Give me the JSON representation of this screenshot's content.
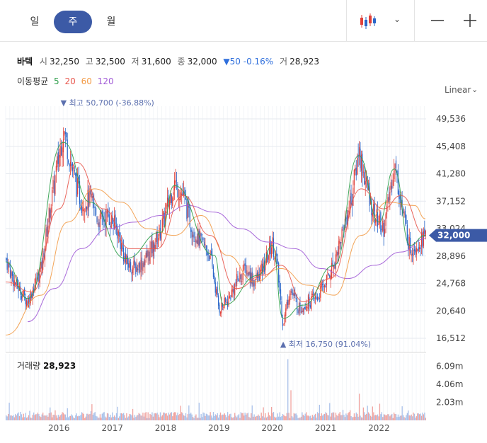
{
  "period_tabs": [
    {
      "label": "일",
      "active": false
    },
    {
      "label": "주",
      "active": true
    },
    {
      "label": "월",
      "active": false
    }
  ],
  "toolbar": {
    "chart_type_icon": "candlestick-icon",
    "dropdown_icon": "chevron-down-icon",
    "zoom_out_icon": "minus-icon",
    "zoom_in_icon": "plus-icon"
  },
  "quote": {
    "name": "바텍",
    "open_label": "시",
    "open": "32,250",
    "high_label": "고",
    "high": "32,500",
    "low_label": "저",
    "low": "31,600",
    "close_label": "종",
    "close": "32,000",
    "change": "▼50 -0.16%",
    "volume_label": "거",
    "volume": "28,923"
  },
  "ma_legend": {
    "label": "이동평균",
    "items": [
      {
        "period": "5",
        "color": "#2e9e4a"
      },
      {
        "period": "20",
        "color": "#e8564c"
      },
      {
        "period": "60",
        "color": "#f29a45"
      },
      {
        "period": "120",
        "color": "#a05ad6"
      }
    ]
  },
  "scale_mode": "Linear",
  "volume_panel": {
    "label": "거래량",
    "value": "28,923"
  },
  "colors": {
    "up": "#e0403a",
    "down": "#2a66c9",
    "accent": "#3c5aa6",
    "ma5": "#2e9e4a",
    "ma20": "#e8564c",
    "ma60": "#f29a45",
    "ma120": "#a05ad6"
  },
  "chart_data": {
    "type": "candlestick",
    "interval": "weekly",
    "x_ticks": [
      "2016",
      "2017",
      "2018",
      "2019",
      "2020",
      "2021",
      "2022"
    ],
    "y_ticks": [
      "49,536",
      "45,408",
      "41,280",
      "37,152",
      "33,024",
      "28,896",
      "24,768",
      "20,640",
      "16,512"
    ],
    "ylim": [
      16512,
      49536
    ],
    "current_price": "32,000",
    "high_annotation": {
      "text": "▼ 최고 50,700 (-36.88%)",
      "value": 50700,
      "date": "2016-02"
    },
    "low_annotation": {
      "text": "▲ 최저 16,750 (91.04%)",
      "value": 16750,
      "date": "2020-03"
    },
    "volume_ticks": [
      "6.09m",
      "4.06m",
      "2.03m"
    ],
    "volume_max": 7500000,
    "price_path": [
      [
        "2015-01-01",
        28500
      ],
      [
        "2015-03-01",
        25000
      ],
      [
        "2015-06-01",
        22000
      ],
      [
        "2015-09-01",
        27000
      ],
      [
        "2015-11-01",
        36000
      ],
      [
        "2016-01-01",
        44000
      ],
      [
        "2016-02-01",
        48000
      ],
      [
        "2016-04-01",
        42000
      ],
      [
        "2016-06-01",
        37000
      ],
      [
        "2016-08-01",
        37500
      ],
      [
        "2016-10-01",
        34000
      ],
      [
        "2016-12-01",
        35000
      ],
      [
        "2017-02-01",
        33000
      ],
      [
        "2017-04-01",
        28000
      ],
      [
        "2017-06-01",
        27000
      ],
      [
        "2017-08-01",
        28000
      ],
      [
        "2017-10-01",
        30000
      ],
      [
        "2017-12-01",
        33000
      ],
      [
        "2018-03-01",
        40000
      ],
      [
        "2018-05-01",
        38000
      ],
      [
        "2018-07-01",
        33000
      ],
      [
        "2018-09-01",
        31000
      ],
      [
        "2018-11-01",
        29000
      ],
      [
        "2019-01-01",
        21000
      ],
      [
        "2019-03-01",
        22000
      ],
      [
        "2019-05-01",
        25000
      ],
      [
        "2019-07-01",
        27000
      ],
      [
        "2019-09-01",
        25000
      ],
      [
        "2019-11-01",
        27000
      ],
      [
        "2020-01-01",
        31000
      ],
      [
        "2020-02-01",
        28000
      ],
      [
        "2020-03-15",
        18500
      ],
      [
        "2020-05-01",
        24000
      ],
      [
        "2020-07-01",
        21000
      ],
      [
        "2020-09-01",
        22000
      ],
      [
        "2020-11-01",
        22500
      ],
      [
        "2021-01-01",
        25000
      ],
      [
        "2021-03-01",
        28000
      ],
      [
        "2021-05-01",
        33000
      ],
      [
        "2021-07-01",
        38000
      ],
      [
        "2021-08-15",
        45000
      ],
      [
        "2021-10-01",
        40000
      ],
      [
        "2021-12-01",
        35000
      ],
      [
        "2022-02-01",
        33000
      ],
      [
        "2022-03-01",
        36000
      ],
      [
        "2022-04-15",
        43000
      ],
      [
        "2022-06-01",
        37000
      ],
      [
        "2022-08-01",
        30000
      ],
      [
        "2022-10-01",
        31000
      ],
      [
        "2022-11-15",
        32000
      ]
    ],
    "moving_averages": [
      {
        "period": "120",
        "color": "#a05ad6",
        "points": [
          [
            "2015-06-01",
            19000
          ],
          [
            "2015-12-01",
            24000
          ],
          [
            "2016-06-01",
            30000
          ],
          [
            "2016-12-01",
            33000
          ],
          [
            "2017-06-01",
            34000
          ],
          [
            "2017-12-01",
            35000
          ],
          [
            "2018-06-01",
            36500
          ],
          [
            "2018-12-01",
            35500
          ],
          [
            "2019-06-01",
            33000
          ],
          [
            "2019-12-01",
            31000
          ],
          [
            "2020-06-01",
            30000
          ],
          [
            "2020-12-01",
            27000
          ],
          [
            "2021-06-01",
            25500
          ],
          [
            "2021-12-01",
            27500
          ],
          [
            "2022-06-01",
            29500
          ],
          [
            "2022-11-15",
            31500
          ]
        ]
      },
      {
        "period": "60",
        "color": "#f29a45",
        "points": [
          [
            "2015-01-01",
            17000
          ],
          [
            "2015-09-01",
            23000
          ],
          [
            "2016-03-01",
            34000
          ],
          [
            "2016-09-01",
            39000
          ],
          [
            "2017-03-01",
            37000
          ],
          [
            "2017-09-01",
            33000
          ],
          [
            "2018-03-01",
            32000
          ],
          [
            "2018-09-01",
            35000
          ],
          [
            "2019-03-01",
            29000
          ],
          [
            "2019-09-01",
            25000
          ],
          [
            "2020-03-01",
            27000
          ],
          [
            "2020-09-01",
            24500
          ],
          [
            "2021-03-01",
            23000
          ],
          [
            "2021-09-01",
            32000
          ],
          [
            "2022-03-01",
            37000
          ],
          [
            "2022-09-01",
            36500
          ],
          [
            "2022-11-15",
            34500
          ]
        ]
      },
      {
        "period": "20",
        "color": "#e8564c",
        "points": [
          [
            "2015-01-01",
            25000
          ],
          [
            "2015-07-01",
            23500
          ],
          [
            "2016-01-01",
            36000
          ],
          [
            "2016-05-01",
            43000
          ],
          [
            "2016-11-01",
            36000
          ],
          [
            "2017-05-01",
            30000
          ],
          [
            "2017-11-01",
            30000
          ],
          [
            "2018-05-01",
            38000
          ],
          [
            "2018-11-01",
            32000
          ],
          [
            "2019-05-01",
            24000
          ],
          [
            "2019-11-01",
            26000
          ],
          [
            "2020-03-01",
            27500
          ],
          [
            "2020-08-01",
            22000
          ],
          [
            "2021-02-01",
            25500
          ],
          [
            "2021-09-01",
            39000
          ],
          [
            "2022-02-01",
            36000
          ],
          [
            "2022-06-01",
            38000
          ],
          [
            "2022-11-15",
            32000
          ]
        ]
      },
      {
        "period": "5",
        "color": "#2e9e4a",
        "points": [
          [
            "2015-01-01",
            28000
          ],
          [
            "2015-06-01",
            22500
          ],
          [
            "2016-02-01",
            46000
          ],
          [
            "2016-08-01",
            37000
          ],
          [
            "2017-04-01",
            28500
          ],
          [
            "2017-12-01",
            32500
          ],
          [
            "2018-03-01",
            39500
          ],
          [
            "2018-12-01",
            29000
          ],
          [
            "2019-02-01",
            21500
          ],
          [
            "2019-10-01",
            26000
          ],
          [
            "2020-01-01",
            30500
          ],
          [
            "2020-03-15",
            19500
          ],
          [
            "2020-08-01",
            21500
          ],
          [
            "2021-03-01",
            27500
          ],
          [
            "2021-08-15",
            44000
          ],
          [
            "2022-01-01",
            34000
          ],
          [
            "2022-04-15",
            42000
          ],
          [
            "2022-08-01",
            30500
          ],
          [
            "2022-11-15",
            32000
          ]
        ]
      }
    ]
  }
}
